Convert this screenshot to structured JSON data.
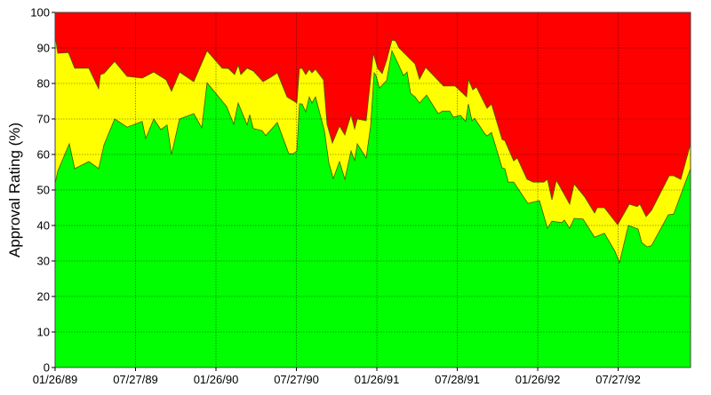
{
  "chart_data": {
    "type": "area",
    "stacked": true,
    "title": "",
    "xlabel": "",
    "ylabel": "Approval Rating (%)",
    "ylim": [
      0,
      100
    ],
    "xlim": [
      "01/26/89",
      "12/26/92"
    ],
    "yticks": [
      "0",
      "10",
      "20",
      "30",
      "40",
      "50",
      "60",
      "70",
      "80",
      "90",
      "100"
    ],
    "xticks": [
      "01/26/89",
      "07/27/89",
      "01/26/90",
      "07/27/90",
      "01/26/91",
      "07/28/91",
      "01/26/92",
      "07/27/92"
    ],
    "grid": true,
    "colors": {
      "lower_area": "#00ff00",
      "middle_area": "#ffff00",
      "upper_area": "#ff0000",
      "outline": "#4a5a00",
      "grid": "#000000"
    },
    "series": [
      {
        "role": "lower boundary (green area top)",
        "points": [
          [
            "01/26/89",
            51.8
          ],
          [
            "02/01/89",
            55.3
          ],
          [
            "02/27/89",
            63
          ],
          [
            "03/11/89",
            56
          ],
          [
            "04/12/89",
            58
          ],
          [
            "05/04/89",
            56
          ],
          [
            "05/16/89",
            62.7
          ],
          [
            "06/09/89",
            70
          ],
          [
            "07/07/89",
            67.7
          ],
          [
            "08/10/89",
            69.3
          ],
          [
            "08/18/89",
            64.5
          ],
          [
            "09/05/89",
            70
          ],
          [
            "09/21/89",
            67
          ],
          [
            "10/05/89",
            68.3
          ],
          [
            "10/15/89",
            60
          ],
          [
            "11/02/89",
            70
          ],
          [
            "12/04/89",
            71.5
          ],
          [
            "12/22/89",
            67.5
          ],
          [
            "01/03/90",
            80.2
          ],
          [
            "02/16/90",
            73.5
          ],
          [
            "03/04/90",
            68.5
          ],
          [
            "03/14/90",
            74.5
          ],
          [
            "04/03/90",
            68.3
          ],
          [
            "04/09/90",
            71.2
          ],
          [
            "04/17/90",
            67.3
          ],
          [
            "05/07/90",
            66.7
          ],
          [
            "05/15/90",
            65.3
          ],
          [
            "06/10/90",
            69
          ],
          [
            "07/06/90",
            60.2
          ],
          [
            "07/16/90",
            60.2
          ],
          [
            "07/24/90",
            61
          ],
          [
            "07/30/90",
            74.3
          ],
          [
            "08/05/90",
            74.2
          ],
          [
            "08/13/90",
            72
          ],
          [
            "08/21/90",
            76.2
          ],
          [
            "08/27/90",
            74.5
          ],
          [
            "09/04/90",
            76.2
          ],
          [
            "09/24/90",
            66.7
          ],
          [
            "10/04/90",
            57.7
          ],
          [
            "10/14/90",
            53.2
          ],
          [
            "10/28/90",
            58
          ],
          [
            "11/09/90",
            53
          ],
          [
            "11/23/90",
            61
          ],
          [
            "12/01/90",
            58.3
          ],
          [
            "12/07/90",
            63
          ],
          [
            "12/27/90",
            59
          ],
          [
            "01/06/91",
            68
          ],
          [
            "01/14/91",
            83
          ],
          [
            "01/18/91",
            82.2
          ],
          [
            "01/26/91",
            78.7
          ],
          [
            "02/11/91",
            80.8
          ],
          [
            "02/23/91",
            89.2
          ],
          [
            "03/09/91",
            85.5
          ],
          [
            "03/21/91",
            82.2
          ],
          [
            "03/29/91",
            83.2
          ],
          [
            "04/06/91",
            77.2
          ],
          [
            "04/16/91",
            76.2
          ],
          [
            "04/26/91",
            74.5
          ],
          [
            "05/12/91",
            76.7
          ],
          [
            "06/07/91",
            71.5
          ],
          [
            "06/17/91",
            72.2
          ],
          [
            "07/03/91",
            72.2
          ],
          [
            "07/11/91",
            70.5
          ],
          [
            "07/27/91",
            71
          ],
          [
            "08/08/91",
            69.3
          ],
          [
            "08/14/91",
            74.2
          ],
          [
            "08/22/91",
            69.5
          ],
          [
            "08/28/91",
            70.2
          ],
          [
            "09/19/91",
            66
          ],
          [
            "09/25/91",
            65.2
          ],
          [
            "10/05/91",
            66.2
          ],
          [
            "10/29/91",
            56.2
          ],
          [
            "11/04/91",
            56
          ],
          [
            "11/12/91",
            52.2
          ],
          [
            "11/24/91",
            52.2
          ],
          [
            "12/26/91",
            46.2
          ],
          [
            "01/21/92",
            47
          ],
          [
            "02/08/92",
            39.2
          ],
          [
            "02/18/92",
            41.2
          ],
          [
            "03/11/92",
            40.8
          ],
          [
            "03/17/92",
            41.5
          ],
          [
            "03/29/92",
            39.2
          ],
          [
            "04/08/92",
            42
          ],
          [
            "04/28/92",
            41.8
          ],
          [
            "05/24/92",
            36.7
          ],
          [
            "06/15/92",
            37.8
          ],
          [
            "07/09/92",
            32.7
          ],
          [
            "07/19/92",
            29.5
          ],
          [
            "08/08/92",
            40
          ],
          [
            "08/30/92",
            39
          ],
          [
            "09/07/92",
            35.2
          ],
          [
            "09/19/92",
            34
          ],
          [
            "09/29/92",
            34.3
          ],
          [
            "11/06/92",
            43
          ],
          [
            "11/18/92",
            43.2
          ],
          [
            "12/16/92",
            52.7
          ],
          [
            "12/26/92",
            56
          ]
        ]
      },
      {
        "role": "upper boundary (yellow area top, cumulative)",
        "points": [
          [
            "01/26/89",
            93.5
          ],
          [
            "02/01/89",
            88.5
          ],
          [
            "02/25/89",
            88.7
          ],
          [
            "03/11/89",
            84.3
          ],
          [
            "04/12/89",
            84.3
          ],
          [
            "05/04/89",
            78.5
          ],
          [
            "05/08/89",
            82.5
          ],
          [
            "05/16/89",
            82.8
          ],
          [
            "06/09/89",
            86.2
          ],
          [
            "07/07/89",
            82
          ],
          [
            "08/10/89",
            81.5
          ],
          [
            "09/05/89",
            83.2
          ],
          [
            "10/03/89",
            81
          ],
          [
            "10/15/89",
            77.8
          ],
          [
            "11/02/89",
            83.2
          ],
          [
            "12/04/89",
            80.5
          ],
          [
            "01/03/90",
            89.2
          ],
          [
            "02/06/90",
            84.3
          ],
          [
            "02/20/90",
            84.2
          ],
          [
            "03/06/90",
            82.5
          ],
          [
            "03/14/90",
            85.2
          ],
          [
            "03/20/90",
            82.5
          ],
          [
            "04/03/90",
            84.3
          ],
          [
            "04/17/90",
            83.5
          ],
          [
            "05/09/90",
            80.5
          ],
          [
            "05/27/90",
            81.8
          ],
          [
            "06/10/90",
            83
          ],
          [
            "07/02/90",
            76.2
          ],
          [
            "07/24/90",
            74.5
          ],
          [
            "07/30/90",
            84.3
          ],
          [
            "08/05/90",
            84.2
          ],
          [
            "08/13/90",
            82.5
          ],
          [
            "08/21/90",
            84
          ],
          [
            "08/27/90",
            83
          ],
          [
            "09/04/90",
            84
          ],
          [
            "09/22/90",
            81
          ],
          [
            "09/30/90",
            68.5
          ],
          [
            "10/12/90",
            63.2
          ],
          [
            "10/28/90",
            68
          ],
          [
            "11/09/90",
            65.5
          ],
          [
            "11/23/90",
            71.2
          ],
          [
            "12/01/90",
            67.2
          ],
          [
            "12/07/90",
            70
          ],
          [
            "12/27/90",
            69.5
          ],
          [
            "01/12/91",
            88.5
          ],
          [
            "01/22/91",
            84.2
          ],
          [
            "02/01/91",
            82.8
          ],
          [
            "02/11/91",
            86.5
          ],
          [
            "02/23/91",
            92.2
          ],
          [
            "03/03/91",
            92
          ],
          [
            "03/11/91",
            90
          ],
          [
            "04/16/91",
            85.5
          ],
          [
            "04/26/91",
            81.2
          ],
          [
            "05/10/91",
            84.5
          ],
          [
            "06/19/91",
            79.3
          ],
          [
            "07/15/91",
            79.3
          ],
          [
            "08/10/91",
            76.2
          ],
          [
            "08/14/91",
            81.2
          ],
          [
            "08/24/91",
            78.2
          ],
          [
            "09/01/91",
            79
          ],
          [
            "09/25/91",
            73
          ],
          [
            "10/05/91",
            74.2
          ],
          [
            "10/29/91",
            64.2
          ],
          [
            "11/04/91",
            63.9
          ],
          [
            "11/24/91",
            58.2
          ],
          [
            "12/02/91",
            59
          ],
          [
            "12/24/91",
            53
          ],
          [
            "01/07/92",
            52.2
          ],
          [
            "01/31/92",
            52.2
          ],
          [
            "02/08/92",
            53
          ],
          [
            "02/18/92",
            47.2
          ],
          [
            "02/28/92",
            52.7
          ],
          [
            "03/17/92",
            48.7
          ],
          [
            "03/29/92",
            46
          ],
          [
            "04/08/92",
            51.7
          ],
          [
            "05/02/92",
            48
          ],
          [
            "05/24/92",
            43.5
          ],
          [
            "05/30/92",
            45
          ],
          [
            "06/15/92",
            45
          ],
          [
            "07/15/92",
            40.2
          ],
          [
            "08/10/92",
            46
          ],
          [
            "08/28/92",
            45.3
          ],
          [
            "09/03/92",
            46
          ],
          [
            "09/17/92",
            42.5
          ],
          [
            "09/29/92",
            44.2
          ],
          [
            "11/08/92",
            54
          ],
          [
            "11/18/92",
            54
          ],
          [
            "12/04/92",
            53
          ],
          [
            "12/26/92",
            63
          ]
        ]
      }
    ]
  }
}
